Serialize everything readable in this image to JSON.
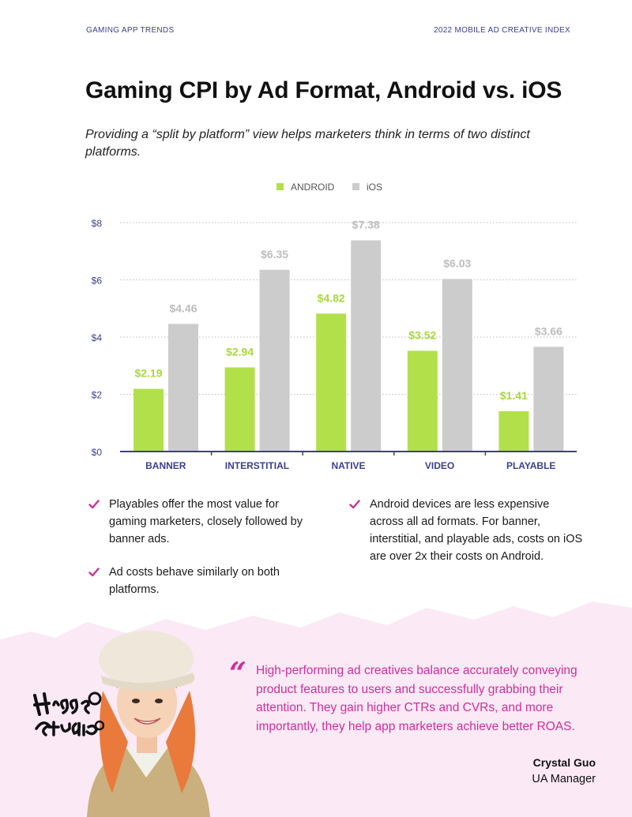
{
  "header": {
    "left": "GAMING APP TRENDS",
    "right": "2022 MOBILE AD CREATIVE INDEX"
  },
  "title": "Gaming CPI by Ad Format, Android vs. iOS",
  "subtitle": "Providing a “split by platform” view helps marketers think in terms of two distinct platforms.",
  "chart_data": {
    "type": "bar",
    "categories": [
      "BANNER",
      "INTERSTITIAL",
      "NATIVE",
      "VIDEO",
      "PLAYABLE"
    ],
    "series": [
      {
        "name": "ANDROID",
        "values": [
          2.19,
          2.94,
          4.82,
          3.52,
          1.41
        ],
        "labels": [
          "$2.19",
          "$2.94",
          "$4.82",
          "$3.52",
          "$1.41"
        ],
        "color": "#b2e04a"
      },
      {
        "name": "iOS",
        "values": [
          4.46,
          6.35,
          7.38,
          6.03,
          3.66
        ],
        "labels": [
          "$4.46",
          "$6.35",
          "$7.38",
          "$6.03",
          "$3.66"
        ],
        "color": "#cccccc"
      }
    ],
    "yticks": [
      0,
      2,
      4,
      6,
      8
    ],
    "ytick_labels": [
      "$0",
      "$2",
      "$4",
      "$6",
      "$8"
    ],
    "ylim": [
      0,
      8
    ],
    "grid": true,
    "legend": "top-center",
    "colors": {
      "axis": "#3b3f8f",
      "grid": "#bdbdbd",
      "category_label": "#3b3f8f",
      "tick_label": "#3b3f8f",
      "android_label": "#a8d83d",
      "ios_label": "#bdbdbd"
    }
  },
  "bullets": {
    "col1": [
      "Playables offer the most value for gaming marketers, closely followed by banner ads.",
      "Ad costs behave similarly on both platforms."
    ],
    "col2": [
      "Android devices are less expensive across all ad formats. For banner, interstitial, and playable ads, costs on iOS are over 2x their costs on Android."
    ]
  },
  "quote": {
    "mark": "“",
    "text": "High-performing ad creatives balance accurately conveying product features to users and successfully grabbing their attention. They gain higher CTRs and CVRs, and more importantly, they help app marketers achieve better ROAS.",
    "author": "Crystal Guo",
    "role": "UA Manager"
  },
  "logo": {
    "text": "Higgs Studio"
  },
  "colors": {
    "accent": "#cf2f9c",
    "navy": "#3b3f8f",
    "pink_bg": "#fbe9f5",
    "android": "#b2e04a",
    "ios": "#cccccc"
  },
  "icons": {
    "bullet": "check-icon"
  }
}
